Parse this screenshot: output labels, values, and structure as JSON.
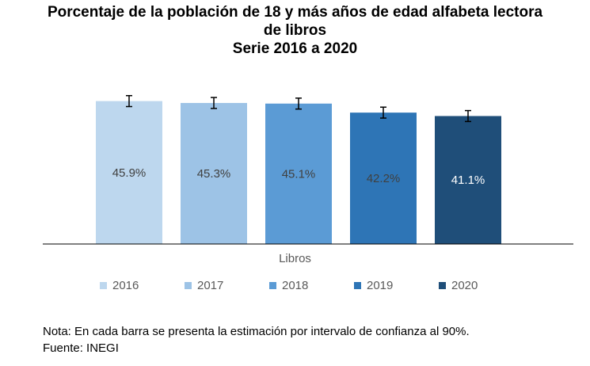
{
  "title_lines": [
    "Porcentaje de la población de 18 y más años de edad alfabeta lectora",
    "de libros",
    "Serie 2016 a 2020"
  ],
  "note": "Nota: En cada barra se presenta la estimación por intervalo de confianza al 90%.",
  "source": "Fuente: INEGI",
  "chart_data": {
    "type": "bar",
    "title": "Porcentaje de la población de 18 y más años de edad alfabeta lectora de libros Serie 2016 a 2020",
    "categories": [
      "Libros"
    ],
    "ylim": [
      0,
      50
    ],
    "grid": false,
    "legend_position": "bottom",
    "series": [
      {
        "name": "2016",
        "values": [
          45.9
        ],
        "label": "45.9%",
        "error": 1.3,
        "color": "#bdd7ee",
        "label_color": "#404040"
      },
      {
        "name": "2017",
        "values": [
          45.3
        ],
        "label": "45.3%",
        "error": 1.3,
        "color": "#9dc3e6",
        "label_color": "#404040"
      },
      {
        "name": "2018",
        "values": [
          45.1
        ],
        "label": "45.1%",
        "error": 1.3,
        "color": "#5b9bd5",
        "label_color": "#404040"
      },
      {
        "name": "2019",
        "values": [
          42.2
        ],
        "label": "42.2%",
        "error": 1.3,
        "color": "#2e75b6",
        "label_color": "#404040"
      },
      {
        "name": "2020",
        "values": [
          41.1
        ],
        "label": "41.1%",
        "error": 1.3,
        "color": "#1f4e79",
        "label_color": "#ffffff"
      }
    ]
  }
}
